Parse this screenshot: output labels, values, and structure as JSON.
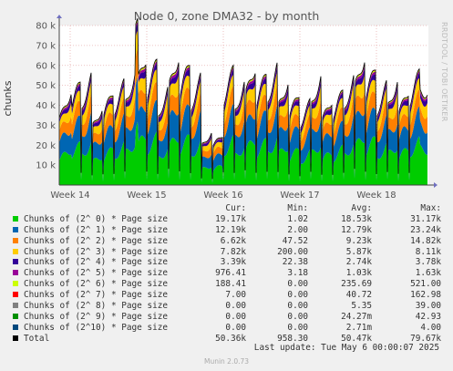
{
  "chart_data": {
    "type": "area",
    "title": "Node 0, zone DMA32 - by month",
    "ylabel": "chunks",
    "side_label": "RRDTOOL / TOBI OETIKER",
    "ylim": [
      0,
      80000
    ],
    "y_ticks": [
      "10 k",
      "20 k",
      "30 k",
      "40 k",
      "50 k",
      "60 k",
      "70 k",
      "80 k"
    ],
    "y_tick_values": [
      10000,
      20000,
      30000,
      40000,
      50000,
      60000,
      70000,
      80000
    ],
    "x_ticks": [
      "Week 14",
      "Week 15",
      "Week 16",
      "Week 17",
      "Week 18"
    ],
    "grid": true,
    "series": [
      {
        "name": "Chunks of (2^ 0) * Page size",
        "color": "#00cc00",
        "cur": "19.17k",
        "min": "1.02",
        "avg": "18.53k",
        "max": "31.17k"
      },
      {
        "name": "Chunks of (2^ 1) * Page size",
        "color": "#0066b3",
        "cur": "12.19k",
        "min": "2.00",
        "avg": "12.79k",
        "max": "23.24k"
      },
      {
        "name": "Chunks of (2^ 2) * Page size",
        "color": "#ff8000",
        "cur": "6.62k",
        "min": "47.52",
        "avg": "9.23k",
        "max": "14.82k"
      },
      {
        "name": "Chunks of (2^ 3) * Page size",
        "color": "#ffcc00",
        "cur": "7.82k",
        "min": "200.00",
        "avg": "5.87k",
        "max": "8.11k"
      },
      {
        "name": "Chunks of (2^ 4) * Page size",
        "color": "#330099",
        "cur": "3.39k",
        "min": "22.38",
        "avg": "2.74k",
        "max": "3.78k"
      },
      {
        "name": "Chunks of (2^ 5) * Page size",
        "color": "#990099",
        "cur": "976.41",
        "min": "3.18",
        "avg": "1.03k",
        "max": "1.63k"
      },
      {
        "name": "Chunks of (2^ 6) * Page size",
        "color": "#ccff00",
        "cur": "188.41",
        "min": "0.00",
        "avg": "235.69",
        "max": "521.00"
      },
      {
        "name": "Chunks of (2^ 7) * Page size",
        "color": "#ff0000",
        "cur": "7.00",
        "min": "0.00",
        "avg": "40.72",
        "max": "162.98"
      },
      {
        "name": "Chunks of (2^ 8) * Page size",
        "color": "#808080",
        "cur": "0.00",
        "min": "0.00",
        "avg": "5.35",
        "max": "39.00"
      },
      {
        "name": "Chunks of (2^ 9) * Page size",
        "color": "#008f00",
        "cur": "0.00",
        "min": "0.00",
        "avg": "24.27m",
        "max": "42.93"
      },
      {
        "name": "Chunks of (2^10) * Page size",
        "color": "#00487d",
        "cur": "0.00",
        "min": "0.00",
        "avg": "2.71m",
        "max": "4.00"
      },
      {
        "name": "Total",
        "color": "#000000",
        "cur": "50.36k",
        "min": "958.30",
        "avg": "50.47k",
        "max": "79.67k"
      }
    ]
  },
  "legend_header": {
    "cur": "Cur:",
    "min": "Min:",
    "avg": "Avg:",
    "max": "Max:"
  },
  "footer": "Last update: Tue May  6 00:00:07 2025",
  "munin": "Munin 2.0.73"
}
